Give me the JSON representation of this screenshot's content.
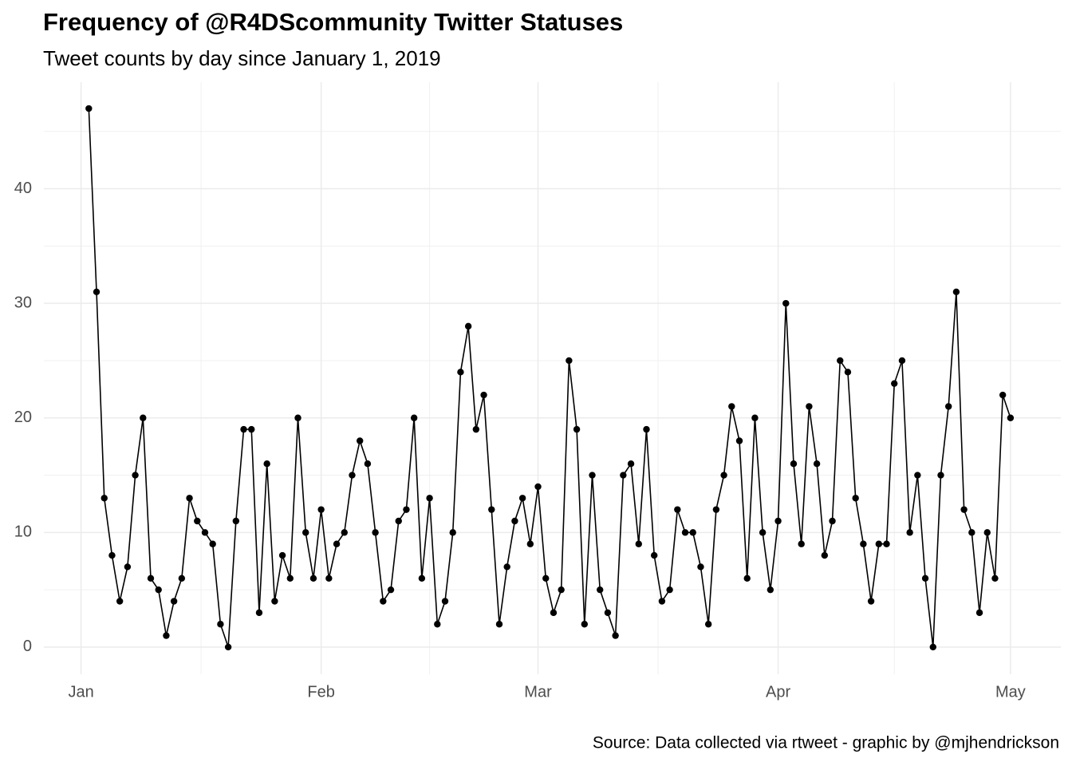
{
  "chart_data": {
    "type": "line",
    "title": "Frequency of @R4DScommunity Twitter Statuses",
    "subtitle": "Tweet counts by day since January 1, 2019",
    "caption": "Source: Data collected via rtweet - graphic by @mjhendrickson",
    "x": [
      2,
      3,
      4,
      5,
      6,
      7,
      8,
      9,
      10,
      11,
      12,
      13,
      14,
      15,
      16,
      17,
      18,
      19,
      20,
      21,
      22,
      23,
      24,
      25,
      26,
      27,
      28,
      29,
      30,
      31,
      32,
      33,
      34,
      35,
      36,
      37,
      38,
      39,
      40,
      41,
      42,
      43,
      44,
      45,
      46,
      47,
      48,
      49,
      50,
      51,
      52,
      53,
      54,
      55,
      56,
      57,
      58,
      59,
      60,
      61,
      62,
      63,
      64,
      65,
      66,
      67,
      68,
      69,
      70,
      71,
      72,
      73,
      74,
      75,
      76,
      77,
      78,
      79,
      80,
      81,
      82,
      83,
      84,
      85,
      86,
      87,
      88,
      89,
      90,
      91,
      92,
      93,
      94,
      95,
      96,
      97,
      98,
      99,
      100,
      101,
      102,
      103,
      104,
      105,
      106,
      107,
      108,
      109,
      110,
      111,
      112,
      113,
      114,
      115,
      116,
      117,
      118,
      119,
      120,
      121
    ],
    "values": [
      47,
      31,
      13,
      8,
      4,
      7,
      15,
      20,
      6,
      5,
      1,
      4,
      6,
      13,
      11,
      10,
      9,
      2,
      0,
      11,
      19,
      19,
      3,
      16,
      4,
      8,
      6,
      20,
      10,
      6,
      12,
      6,
      9,
      10,
      15,
      18,
      16,
      10,
      4,
      5,
      11,
      12,
      20,
      6,
      13,
      2,
      4,
      10,
      24,
      28,
      19,
      22,
      12,
      2,
      7,
      11,
      13,
      9,
      14,
      6,
      3,
      5,
      25,
      19,
      2,
      15,
      5,
      3,
      1,
      15,
      16,
      9,
      19,
      8,
      4,
      5,
      12,
      10,
      10,
      7,
      2,
      12,
      15,
      21,
      18,
      6,
      20,
      10,
      5,
      11,
      30,
      16,
      9,
      21,
      16,
      8,
      11,
      25,
      24,
      13,
      9,
      4,
      9,
      9,
      23,
      25,
      10,
      15,
      6,
      0,
      15,
      21,
      31,
      12,
      10,
      3,
      10,
      6,
      22,
      20
    ],
    "color": "#000000",
    "xlim": [
      -3.8,
      127.5
    ],
    "xticks": [
      {
        "value": 1,
        "label": "Jan"
      },
      {
        "value": 32,
        "label": "Feb"
      },
      {
        "value": 60,
        "label": "Mar"
      },
      {
        "value": 91,
        "label": "Apr"
      },
      {
        "value": 121,
        "label": "May"
      }
    ],
    "ylim": [
      -2.37,
      49.3
    ],
    "yticks": [
      0,
      10,
      20,
      30,
      40
    ],
    "grid": true
  }
}
